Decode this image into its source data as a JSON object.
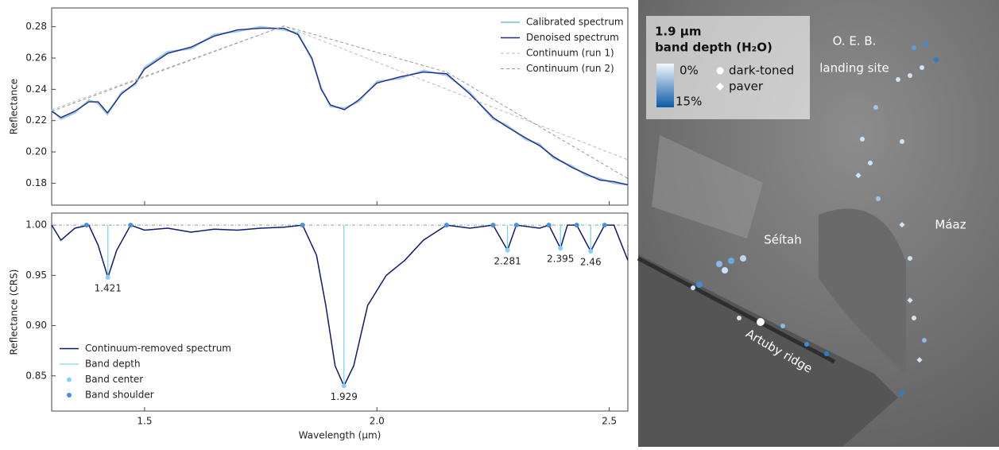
{
  "chart_data": [
    {
      "type": "line",
      "ylabel": "Reflectance",
      "xlim": [
        1.3,
        2.54
      ],
      "ylim": [
        0.166,
        0.292
      ],
      "xticks": [
        1.5,
        {
          "value": 2,
          "label": "2.0"
        },
        2.5
      ],
      "yticks": [
        0.18,
        {
          "value": 0.2,
          "label": "0.20"
        },
        0.22,
        0.24,
        0.26,
        0.28
      ],
      "legend": "upper right",
      "x": [
        1.3,
        1.32,
        1.35,
        1.38,
        1.4,
        1.42,
        1.45,
        1.48,
        1.5,
        1.55,
        1.6,
        1.65,
        1.7,
        1.75,
        1.8,
        1.83,
        1.86,
        1.88,
        1.9,
        1.93,
        1.96,
        2.0,
        2.05,
        2.1,
        2.15,
        2.2,
        2.25,
        2.28,
        2.32,
        2.35,
        2.38,
        2.42,
        2.45,
        2.48,
        2.51,
        2.54
      ],
      "series": [
        {
          "name": "Calibrated spectrum",
          "color": "#9ecae1",
          "style": "solid",
          "width": 2.2,
          "values": [
            0.227,
            0.221,
            0.225,
            0.233,
            0.231,
            0.224,
            0.238,
            0.243,
            0.254,
            0.264,
            0.266,
            0.275,
            0.277,
            0.28,
            0.278,
            0.276,
            0.259,
            0.241,
            0.229,
            0.228,
            0.232,
            0.245,
            0.247,
            0.252,
            0.249,
            0.238,
            0.221,
            0.217,
            0.208,
            0.205,
            0.196,
            0.191,
            0.185,
            0.183,
            0.18,
            0.179
          ]
        },
        {
          "name": "Denoised spectrum",
          "color": "#1f2a8c",
          "style": "solid",
          "width": 1.4,
          "values": [
            0.226,
            0.222,
            0.226,
            0.232,
            0.232,
            0.225,
            0.237,
            0.244,
            0.253,
            0.263,
            0.267,
            0.274,
            0.278,
            0.279,
            0.279,
            0.275,
            0.26,
            0.24,
            0.23,
            0.227,
            0.233,
            0.244,
            0.248,
            0.251,
            0.25,
            0.237,
            0.222,
            0.216,
            0.209,
            0.204,
            0.197,
            0.19,
            0.186,
            0.182,
            0.181,
            0.179
          ]
        },
        {
          "name": "Continuum (run 1)",
          "color": "#bbbbbb",
          "style": "dashed",
          "width": 1,
          "x": [
            1.3,
            1.8,
            2.54
          ],
          "values": [
            0.227,
            0.2805,
            0.195
          ]
        },
        {
          "name": "Continuum (run 2)",
          "color": "#999999",
          "style": "dashed",
          "width": 1,
          "x": [
            1.3,
            1.8,
            2.15,
            2.54
          ],
          "values": [
            0.226,
            0.2805,
            0.251,
            0.183
          ]
        }
      ]
    },
    {
      "type": "line",
      "ylabel": "Reflectance (CRS)",
      "xlabel": "Wavelength (μm)",
      "xlim": [
        1.3,
        2.54
      ],
      "ylim": [
        0.815,
        1.012
      ],
      "xticks": [
        1.5,
        {
          "value": 2,
          "label": "2.0"
        },
        2.5
      ],
      "yticks": [
        0.85,
        {
          "value": 0.9,
          "label": "0.90"
        },
        0.95,
        {
          "value": 1,
          "label": "1.00"
        }
      ],
      "legend": "lower left",
      "reference_line": 1,
      "series": [
        {
          "name": "Continuum-removed spectrum",
          "color": "#0d1b6e",
          "style": "solid",
          "width": 1.5,
          "x": [
            1.3,
            1.32,
            1.35,
            1.38,
            1.4,
            1.421,
            1.44,
            1.47,
            1.5,
            1.55,
            1.6,
            1.65,
            1.7,
            1.75,
            1.8,
            1.84,
            1.87,
            1.89,
            1.91,
            1.929,
            1.95,
            1.98,
            2.02,
            2.06,
            2.1,
            2.15,
            2.2,
            2.25,
            2.281,
            2.3,
            2.35,
            2.37,
            2.395,
            2.41,
            2.43,
            2.46,
            2.49,
            2.51,
            2.54
          ],
          "values": [
            1.0,
            0.985,
            0.997,
            1.0,
            0.98,
            0.948,
            0.975,
            1.0,
            0.995,
            0.997,
            0.993,
            0.996,
            0.995,
            0.997,
            0.998,
            1.0,
            0.97,
            0.92,
            0.86,
            0.84,
            0.86,
            0.92,
            0.95,
            0.965,
            0.985,
            1.0,
            0.997,
            1.0,
            0.975,
            1.0,
            0.997,
            1.0,
            0.977,
            1.0,
            1.0,
            0.974,
            1.0,
            1.0,
            0.965
          ]
        },
        {
          "name": "Band depth",
          "color": "#7fd3ee",
          "style": "vline",
          "of": 2
        },
        {
          "name": "Band center",
          "color": "#87cefa",
          "style": "points",
          "labels": true,
          "x": [
            1.421,
            1.929,
            2.281,
            2.395,
            2.46
          ],
          "values": [
            0.948,
            0.84,
            0.975,
            0.977,
            0.974
          ]
        },
        {
          "name": "Band shoulder",
          "color": "#4a8fe0",
          "style": "points",
          "x": [
            1.375,
            1.47,
            1.84,
            2.15,
            2.25,
            2.3,
            2.37,
            2.43,
            2.49
          ],
          "values": [
            1,
            1,
            1,
            1,
            1,
            1,
            1,
            1,
            1
          ]
        }
      ]
    }
  ],
  "map": {
    "legend": {
      "title": [
        "1.9 μm",
        "band depth (H₂O)"
      ],
      "colorbar_labels": [
        "0%",
        "15%"
      ],
      "markers": [
        "dark-toned",
        "paver"
      ]
    },
    "labels": [
      "O. E. B.",
      "landing site",
      "Séítah",
      "Máaz",
      "Artuby ridge"
    ]
  }
}
